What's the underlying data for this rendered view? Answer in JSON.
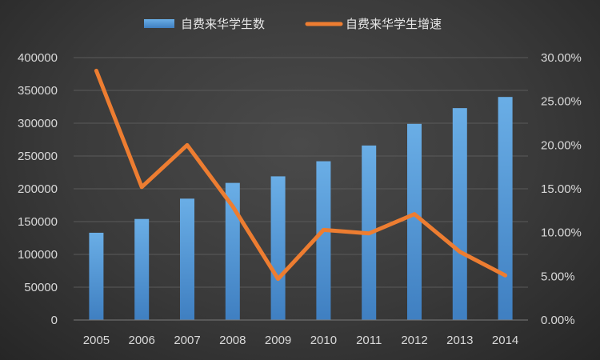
{
  "chart_data": {
    "type": "bar+line",
    "categories": [
      "2005",
      "2006",
      "2007",
      "2008",
      "2009",
      "2010",
      "2011",
      "2012",
      "2013",
      "2014"
    ],
    "series": [
      {
        "name": "自费来华学生数",
        "type": "bar",
        "axis": "left",
        "color": "#5b9bd5",
        "values": [
          133000,
          154000,
          185000,
          209000,
          219000,
          242000,
          266000,
          299000,
          323000,
          340000
        ]
      },
      {
        "name": "自费来华学生增速",
        "type": "line",
        "axis": "right",
        "color": "#ed7d31",
        "values": [
          0.285,
          0.152,
          0.2,
          0.13,
          0.047,
          0.103,
          0.099,
          0.121,
          0.078,
          0.051
        ]
      }
    ],
    "y_left": {
      "min": 0,
      "max": 400000,
      "ticks": [
        "0",
        "50000",
        "100000",
        "150000",
        "200000",
        "250000",
        "300000",
        "350000",
        "400000"
      ]
    },
    "y_right": {
      "min": 0,
      "max": 0.3,
      "ticks": [
        "0.00%",
        "5.00%",
        "10.00%",
        "15.00%",
        "20.00%",
        "25.00%",
        "30.00%"
      ]
    },
    "legend_position": "top-center",
    "grid": true,
    "background_color": "#3a3a3a"
  }
}
